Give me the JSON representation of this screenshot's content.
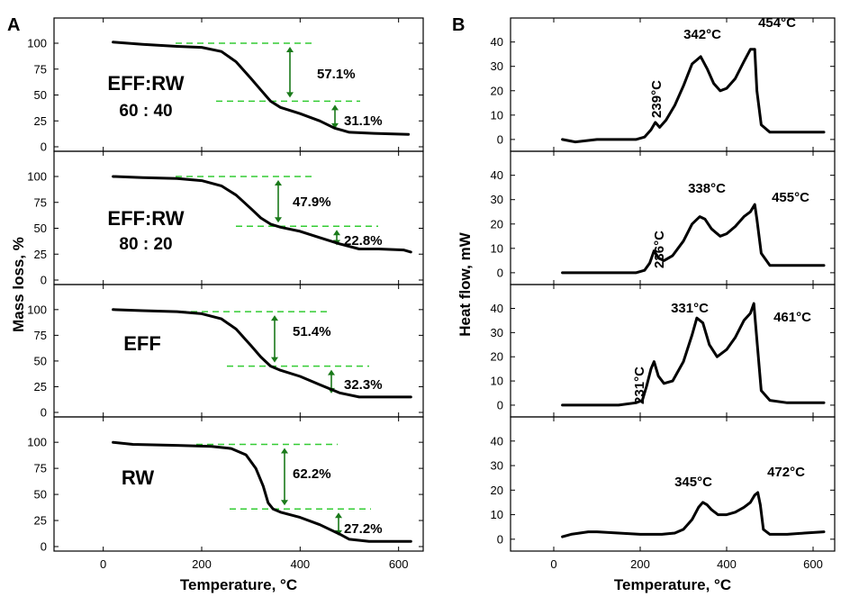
{
  "panel_labels": {
    "a": "A",
    "b": "B"
  },
  "chart_data": [
    {
      "type": "line",
      "panel": "A",
      "xlabel": "Temperature, °C",
      "ylabel": "Mass loss, %",
      "xlim": [
        -100,
        650
      ],
      "ylim": [
        0,
        120
      ],
      "x_ticks": [
        "0",
        "200",
        "400",
        "600"
      ],
      "y_ticks": [
        "0",
        "25",
        "50",
        "75",
        "100"
      ],
      "colors": {
        "curve": "#000000",
        "guide": "#33cc33",
        "arrow": "#1a7a1a"
      },
      "subplots": [
        {
          "label": "EFF:RW",
          "ratio": "60 : 40",
          "steps": [
            {
              "text": "57.1%",
              "from": 100,
              "to": 44
            },
            {
              "text": "31.1%",
              "from": 44,
              "to": 14
            }
          ],
          "series": [
            {
              "x": [
                20,
                80,
                150,
                200,
                240,
                270,
                300,
                320,
                340,
                360,
                400,
                440,
                470,
                500,
                550,
                620
              ],
              "y": [
                101,
                99,
                97,
                96,
                92,
                82,
                66,
                55,
                44,
                38,
                32,
                25,
                18,
                14,
                13,
                12
              ]
            }
          ]
        },
        {
          "label": "EFF:RW",
          "ratio": "80 : 20",
          "steps": [
            {
              "text": "47.9%",
              "from": 100,
              "to": 52
            },
            {
              "text": "22.8%",
              "from": 52,
              "to": 30
            }
          ],
          "series": [
            {
              "x": [
                20,
                80,
                150,
                200,
                240,
                270,
                300,
                320,
                340,
                360,
                400,
                440,
                480,
                520,
                560,
                610,
                625
              ],
              "y": [
                100,
                99,
                98,
                96,
                91,
                82,
                69,
                60,
                54,
                51,
                47,
                41,
                35,
                30,
                30,
                29,
                27
              ]
            }
          ]
        },
        {
          "label": "EFF",
          "steps": [
            {
              "text": "51.4%",
              "from": 98,
              "to": 45
            },
            {
              "text": "32.3%",
              "from": 45,
              "to": 15
            }
          ],
          "series": [
            {
              "x": [
                20,
                80,
                150,
                200,
                240,
                270,
                300,
                320,
                340,
                360,
                400,
                440,
                480,
                520,
                560,
                625
              ],
              "y": [
                100,
                99,
                98,
                96,
                91,
                81,
                65,
                54,
                45,
                41,
                35,
                27,
                19,
                15,
                15,
                15
              ]
            }
          ]
        },
        {
          "label": "RW",
          "steps": [
            {
              "text": "62.2%",
              "from": 98,
              "to": 36
            },
            {
              "text": "27.2%",
              "from": 36,
              "to": 7
            }
          ],
          "series": [
            {
              "x": [
                20,
                60,
                150,
                220,
                260,
                290,
                310,
                325,
                335,
                345,
                360,
                400,
                440,
                480,
                500,
                540,
                580,
                625
              ],
              "y": [
                100,
                98,
                97,
                96,
                94,
                88,
                75,
                58,
                42,
                36,
                33,
                28,
                21,
                12,
                7,
                5,
                5,
                5
              ]
            }
          ]
        }
      ]
    },
    {
      "type": "line",
      "panel": "B",
      "xlabel": "Temperature, °C",
      "ylabel": "Heat flow, mW",
      "xlim": [
        -100,
        650
      ],
      "ylim": [
        -3,
        48
      ],
      "x_ticks": [
        "0",
        "200",
        "400",
        "600"
      ],
      "y_ticks": [
        "0",
        "10",
        "20",
        "30",
        "40"
      ],
      "colors": {
        "curve": "#000000"
      },
      "subplots": [
        {
          "peaks": [
            "239°C",
            "342°C",
            "454°C"
          ],
          "series": [
            {
              "x": [
                20,
                50,
                100,
                150,
                190,
                210,
                225,
                235,
                245,
                260,
                280,
                300,
                320,
                340,
                355,
                370,
                385,
                400,
                420,
                440,
                455,
                465,
                470,
                480,
                500,
                540,
                580,
                625
              ],
              "y": [
                0,
                -1,
                0,
                0,
                0,
                1,
                4,
                7,
                5,
                8,
                14,
                22,
                31,
                34,
                29,
                23,
                20,
                21,
                25,
                32,
                37,
                37,
                20,
                6,
                3,
                3,
                3,
                3
              ]
            }
          ]
        },
        {
          "peaks": [
            "236°C",
            "338°C",
            "455°C"
          ],
          "series": [
            {
              "x": [
                20,
                60,
                100,
                150,
                190,
                210,
                222,
                232,
                242,
                255,
                275,
                300,
                320,
                338,
                350,
                365,
                385,
                400,
                420,
                440,
                455,
                465,
                470,
                480,
                500,
                540,
                580,
                625
              ],
              "y": [
                0,
                0,
                0,
                0,
                0,
                1,
                4,
                9,
                6,
                5,
                7,
                13,
                20,
                23,
                22,
                18,
                15,
                16,
                19,
                23,
                25,
                28,
                22,
                8,
                3,
                3,
                3,
                3
              ]
            }
          ]
        },
        {
          "peaks": [
            "231°C",
            "331°C",
            "461°C"
          ],
          "series": [
            {
              "x": [
                20,
                60,
                100,
                150,
                190,
                205,
                215,
                225,
                232,
                242,
                255,
                275,
                300,
                320,
                331,
                345,
                360,
                378,
                400,
                420,
                440,
                455,
                463,
                470,
                480,
                500,
                540,
                580,
                625
              ],
              "y": [
                0,
                0,
                0,
                0,
                1,
                2,
                8,
                15,
                18,
                12,
                9,
                10,
                18,
                29,
                36,
                34,
                25,
                20,
                23,
                28,
                35,
                38,
                42,
                27,
                6,
                2,
                1,
                1,
                1
              ]
            }
          ]
        },
        {
          "peaks": [
            "345°C",
            "472°C"
          ],
          "series": [
            {
              "x": [
                20,
                40,
                60,
                80,
                100,
                150,
                200,
                250,
                280,
                300,
                320,
                335,
                345,
                355,
                365,
                380,
                400,
                420,
                440,
                455,
                465,
                472,
                478,
                485,
                500,
                540,
                580,
                625
              ],
              "y": [
                1,
                2,
                2.5,
                3,
                3,
                2.5,
                2,
                2,
                2.5,
                4,
                8,
                13,
                15,
                14,
                12,
                10,
                10,
                11,
                13,
                15,
                18,
                19,
                14,
                4,
                2,
                2,
                2.5,
                3
              ]
            }
          ]
        }
      ]
    }
  ]
}
